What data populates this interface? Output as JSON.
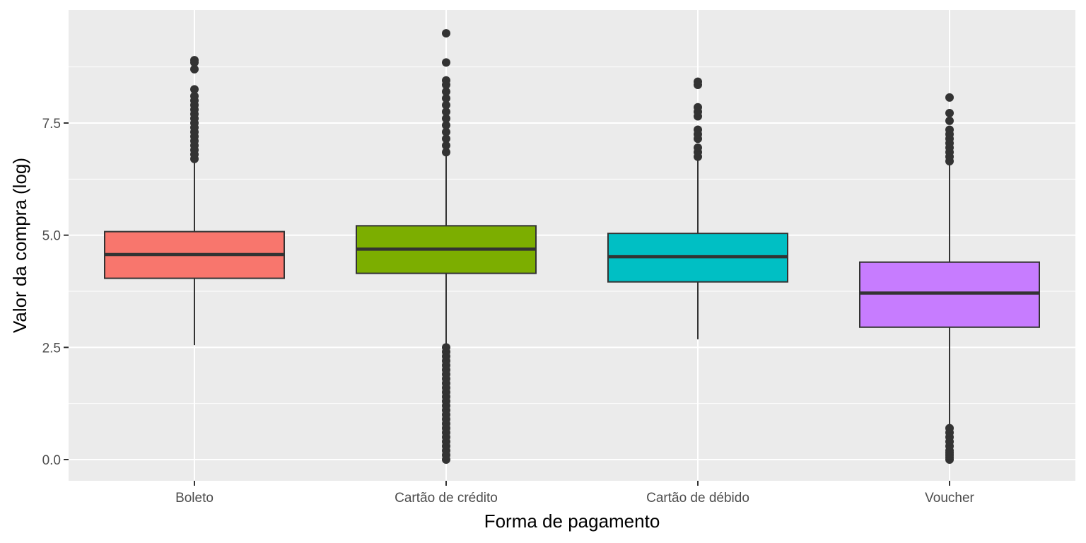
{
  "chart_data": {
    "type": "box",
    "title": "",
    "xlabel": "Forma de pagamento",
    "ylabel": "Valor da compra (log)",
    "ylim": [
      -0.47,
      10.0
    ],
    "yticks": [
      0.0,
      2.5,
      5.0,
      7.5
    ],
    "ytick_labels": [
      "0.0",
      "2.5",
      "5.0",
      "7.5"
    ],
    "grid": true,
    "legend": "none",
    "categories": [
      "Boleto",
      "Cartão de crédito",
      "Cartão de débido",
      "Voucher"
    ],
    "colors": [
      "#F8766D",
      "#7CAE00",
      "#00BFC4",
      "#C77CFF"
    ],
    "series": [
      {
        "category": "Boleto",
        "whisker_low": 2.55,
        "q1": 4.04,
        "median": 4.57,
        "q3": 5.08,
        "whisker_high": 6.65,
        "outliers": [
          6.7,
          6.8,
          6.9,
          7.0,
          7.1,
          7.2,
          7.3,
          7.4,
          7.5,
          7.6,
          7.7,
          7.8,
          7.9,
          8.0,
          8.1,
          8.25,
          8.7,
          8.85,
          8.9
        ]
      },
      {
        "category": "Cartão de crédito",
        "whisker_low": 2.55,
        "q1": 4.15,
        "median": 4.69,
        "q3": 5.21,
        "whisker_high": 6.8,
        "outliers": [
          0.0,
          0.1,
          0.2,
          0.3,
          0.4,
          0.5,
          0.6,
          0.7,
          0.8,
          0.9,
          1.0,
          1.1,
          1.2,
          1.3,
          1.4,
          1.5,
          1.6,
          1.7,
          1.8,
          1.9,
          2.0,
          2.1,
          2.2,
          2.3,
          2.4,
          2.5,
          6.85,
          7.0,
          7.15,
          7.3,
          7.45,
          7.6,
          7.75,
          7.9,
          8.05,
          8.2,
          8.35,
          8.45,
          8.85,
          9.5
        ]
      },
      {
        "category": "Cartão de débido",
        "whisker_low": 2.68,
        "q1": 3.96,
        "median": 4.52,
        "q3": 5.04,
        "whisker_high": 6.7,
        "outliers": [
          6.75,
          6.85,
          6.95,
          7.15,
          7.25,
          7.35,
          7.65,
          7.75,
          7.85,
          8.35,
          8.42
        ]
      },
      {
        "category": "Voucher",
        "whisker_low": 0.78,
        "q1": 2.95,
        "median": 3.71,
        "q3": 4.4,
        "whisker_high": 6.6,
        "outliers": [
          0.0,
          0.05,
          0.1,
          0.15,
          0.2,
          0.3,
          0.4,
          0.5,
          0.6,
          0.7,
          6.65,
          6.75,
          6.85,
          6.95,
          7.05,
          7.15,
          7.25,
          7.35,
          7.55,
          7.72,
          8.07
        ]
      }
    ]
  }
}
